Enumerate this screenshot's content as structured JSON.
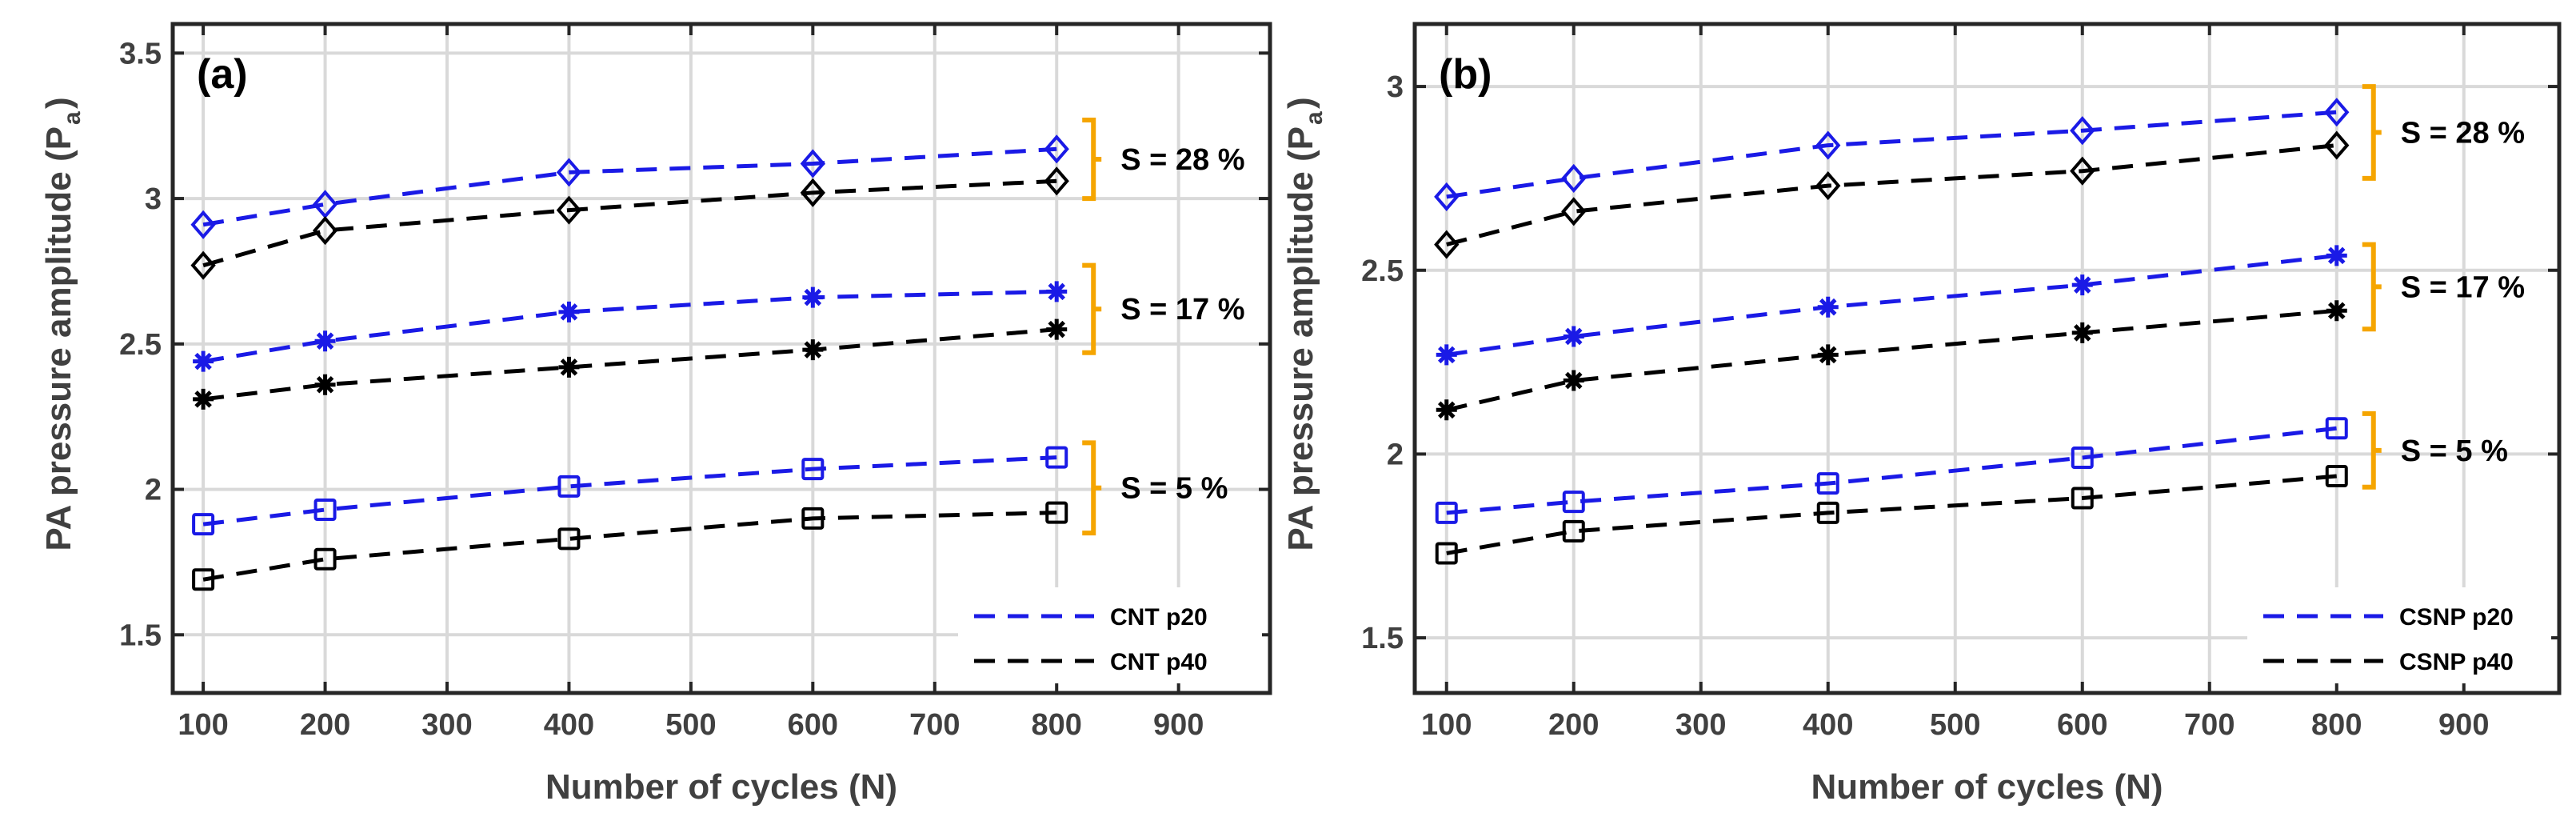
{
  "chart_data": [
    {
      "type": "line",
      "panel_label": "(a)",
      "xlabel": "Number of cycles (N)",
      "ylabel_main": "PA pressure amplitude (P",
      "ylabel_sub": "a",
      "ylabel_close": ")",
      "xlim": [
        75,
        975
      ],
      "ylim": [
        1.3,
        3.6
      ],
      "xticks": [
        100,
        200,
        300,
        400,
        500,
        600,
        700,
        800,
        900
      ],
      "xtick_labels": [
        "100",
        "200",
        "300",
        "400",
        "500",
        "600",
        "700",
        "800",
        "900"
      ],
      "yticks": [
        1.5,
        2,
        2.5,
        3,
        3.5
      ],
      "ytick_labels": [
        "1.5",
        "2",
        "2.5",
        "3",
        "3.5"
      ],
      "grid": true,
      "x": [
        100,
        200,
        400,
        600,
        800
      ],
      "series": [
        {
          "name": "CNT p20",
          "group": "S = 28 %",
          "color": "#1a1ae6",
          "marker": "diamond",
          "values": [
            2.91,
            2.98,
            3.09,
            3.12,
            3.17
          ]
        },
        {
          "name": "CNT p40",
          "group": "S = 28 %",
          "color": "#000000",
          "marker": "diamond",
          "values": [
            2.77,
            2.89,
            2.96,
            3.02,
            3.06
          ]
        },
        {
          "name": "CNT p20",
          "group": "S = 17 %",
          "color": "#1a1ae6",
          "marker": "star",
          "values": [
            2.44,
            2.51,
            2.61,
            2.66,
            2.68
          ]
        },
        {
          "name": "CNT p40",
          "group": "S = 17 %",
          "color": "#000000",
          "marker": "star",
          "values": [
            2.31,
            2.36,
            2.42,
            2.48,
            2.55
          ]
        },
        {
          "name": "CNT p20",
          "group": "S = 5 %",
          "color": "#1a1ae6",
          "marker": "square",
          "values": [
            1.88,
            1.93,
            2.01,
            2.07,
            2.11
          ]
        },
        {
          "name": "CNT p40",
          "group": "S = 5 %",
          "color": "#000000",
          "marker": "square",
          "values": [
            1.69,
            1.76,
            1.83,
            1.9,
            1.92
          ]
        }
      ],
      "annotations": [
        {
          "text": "S = 28 %",
          "y_low": 3.0,
          "y_high": 3.27
        },
        {
          "text": "S = 17 %",
          "y_low": 2.47,
          "y_high": 2.77
        },
        {
          "text": "S = 5 %",
          "y_low": 1.85,
          "y_high": 2.16
        }
      ],
      "legend": {
        "position": "bottom-right",
        "entries": [
          {
            "label": "CNT p20",
            "color": "#1a1ae6"
          },
          {
            "label": "CNT p40",
            "color": "#000000"
          }
        ]
      },
      "bracket_color": "#f5a500"
    },
    {
      "type": "line",
      "panel_label": "(b)",
      "xlabel": "Number of cycles (N)",
      "ylabel_main": "PA pressure amplitude (P",
      "ylabel_sub": "a",
      "ylabel_close": ")",
      "xlim": [
        75,
        975
      ],
      "ylim": [
        1.35,
        3.17
      ],
      "xticks": [
        100,
        200,
        300,
        400,
        500,
        600,
        700,
        800,
        900
      ],
      "xtick_labels": [
        "100",
        "200",
        "300",
        "400",
        "500",
        "600",
        "700",
        "800",
        "900"
      ],
      "yticks": [
        1.5,
        2,
        2.5,
        3
      ],
      "ytick_labels": [
        "1.5",
        "2",
        "2.5",
        "3"
      ],
      "grid": true,
      "x": [
        100,
        200,
        400,
        600,
        800
      ],
      "series": [
        {
          "name": "CSNP p20",
          "group": "S = 28 %",
          "color": "#1a1ae6",
          "marker": "diamond",
          "values": [
            2.7,
            2.75,
            2.84,
            2.88,
            2.93
          ]
        },
        {
          "name": "CSNP p40",
          "group": "S = 28 %",
          "color": "#000000",
          "marker": "diamond",
          "values": [
            2.57,
            2.66,
            2.73,
            2.77,
            2.84
          ]
        },
        {
          "name": "CSNP p20",
          "group": "S = 17 %",
          "color": "#1a1ae6",
          "marker": "star",
          "values": [
            2.27,
            2.32,
            2.4,
            2.46,
            2.54
          ]
        },
        {
          "name": "CSNP p40",
          "group": "S = 17 %",
          "color": "#000000",
          "marker": "star",
          "values": [
            2.12,
            2.2,
            2.27,
            2.33,
            2.39
          ]
        },
        {
          "name": "CSNP p20",
          "group": "S = 5 %",
          "color": "#1a1ae6",
          "marker": "square",
          "values": [
            1.84,
            1.87,
            1.92,
            1.99,
            2.07
          ]
        },
        {
          "name": "CSNP p40",
          "group": "S = 5 %",
          "color": "#000000",
          "marker": "square",
          "values": [
            1.73,
            1.79,
            1.84,
            1.88,
            1.94
          ]
        }
      ],
      "annotations": [
        {
          "text": "S = 28 %",
          "y_low": 2.75,
          "y_high": 3.0
        },
        {
          "text": "S = 17 %",
          "y_low": 2.34,
          "y_high": 2.57
        },
        {
          "text": "S = 5 %",
          "y_low": 1.91,
          "y_high": 2.11
        }
      ],
      "legend": {
        "position": "bottom-right",
        "entries": [
          {
            "label": "CSNP p20",
            "color": "#1a1ae6"
          },
          {
            "label": "CSNP p40",
            "color": "#000000"
          }
        ]
      },
      "bracket_color": "#f5a500"
    }
  ]
}
